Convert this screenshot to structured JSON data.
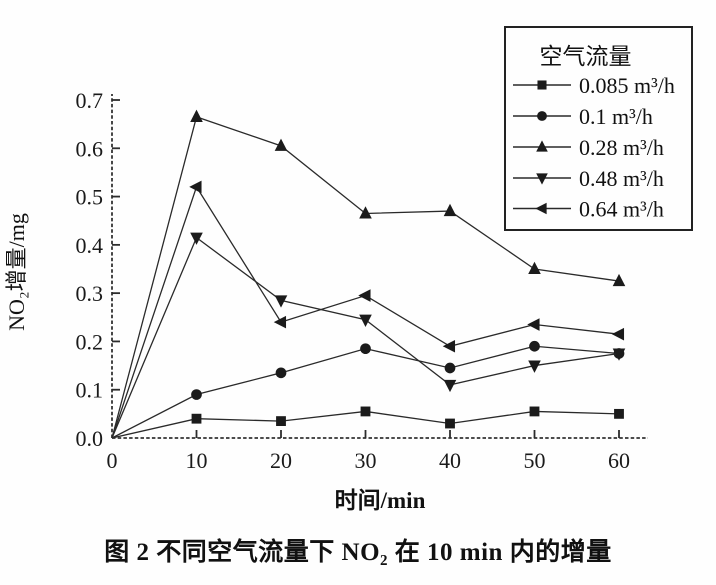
{
  "figure": {
    "caption": "图 2  不同空气流量下 NO₂ 在 10 min 内的增量"
  },
  "chart_data": {
    "type": "line",
    "title": "",
    "xlabel": "时间/min",
    "ylabel": "NO₂增量/mg",
    "xlim": [
      0,
      60
    ],
    "ylim": [
      0.0,
      0.7
    ],
    "x_ticks": [
      0,
      10,
      20,
      30,
      40,
      50,
      60
    ],
    "y_ticks": [
      "0.0",
      "0.1",
      "0.2",
      "0.3",
      "0.4",
      "0.5",
      "0.6",
      "0.7"
    ],
    "grid": false,
    "legend": {
      "title": "空气流量",
      "position": "top-right"
    },
    "x": [
      0,
      10,
      20,
      30,
      40,
      50,
      60
    ],
    "series": [
      {
        "name": "0.085 m³/h",
        "marker": "square",
        "values": [
          0,
          0.04,
          0.035,
          0.055,
          0.03,
          0.055,
          0.05
        ]
      },
      {
        "name": "0.1 m³/h",
        "marker": "circle",
        "values": [
          0,
          0.09,
          0.135,
          0.185,
          0.145,
          0.19,
          0.175
        ]
      },
      {
        "name": "0.28 m³/h",
        "marker": "triangle-up",
        "values": [
          0,
          0.665,
          0.605,
          0.465,
          0.47,
          0.35,
          0.325
        ]
      },
      {
        "name": "0.48 m³/h",
        "marker": "triangle-down",
        "values": [
          0,
          0.415,
          0.285,
          0.245,
          0.11,
          0.15,
          0.175
        ]
      },
      {
        "name": "0.64 m³/h",
        "marker": "triangle-left",
        "values": [
          0,
          0.52,
          0.24,
          0.295,
          0.19,
          0.235,
          0.215
        ]
      }
    ],
    "colors": {
      "ink": "#1b1b1b",
      "background": "#fefefe"
    }
  }
}
